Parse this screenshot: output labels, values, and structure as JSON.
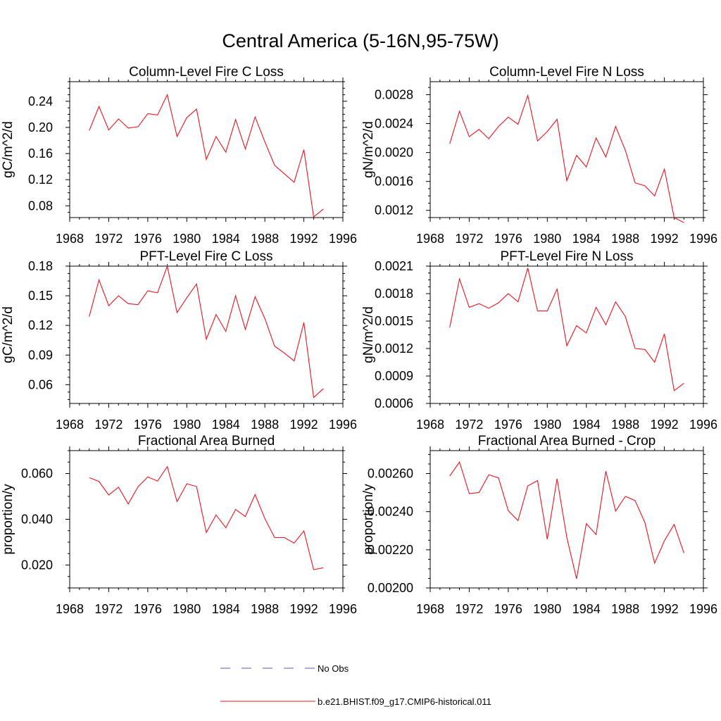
{
  "figure": {
    "title": "Central America (5-16N,95-75W)"
  },
  "legend": {
    "entries": [
      {
        "label": "No Obs",
        "color": "#5a5ab4",
        "dash": true
      },
      {
        "label": "b.e21.BHIST.f09_g17.CMIP6-historical.011",
        "color": "#e8141e",
        "dash": false
      }
    ]
  },
  "chart_data": [
    {
      "type": "line",
      "title": "Column-Level Fire C Loss",
      "ylabel": "gC/m^2/d",
      "xlim": [
        1968,
        1996
      ],
      "xticks": [
        "1968",
        "1972",
        "1976",
        "1980",
        "1984",
        "1988",
        "1992",
        "1996"
      ],
      "ylim": [
        0.062,
        0.27
      ],
      "yticks": [
        "0.08",
        "0.12",
        "0.16",
        "0.20",
        "0.24"
      ],
      "x": [
        1970,
        1971,
        1972,
        1973,
        1974,
        1975,
        1976,
        1977,
        1978,
        1979,
        1980,
        1981,
        1982,
        1983,
        1984,
        1985,
        1986,
        1987,
        1988,
        1989,
        1990,
        1991,
        1992,
        1993,
        1994
      ],
      "series": [
        {
          "name": "b.e21.BHIST.f09_g17.CMIP6-historical.011",
          "color": "#e8141e",
          "values": [
            0.195,
            0.232,
            0.196,
            0.213,
            0.199,
            0.201,
            0.221,
            0.219,
            0.25,
            0.186,
            0.215,
            0.228,
            0.151,
            0.186,
            0.162,
            0.212,
            0.167,
            0.216,
            0.178,
            0.142,
            0.129,
            0.116,
            0.166,
            0.063,
            0.075
          ]
        }
      ]
    },
    {
      "type": "line",
      "title": "Column-Level Fire N Loss",
      "ylabel": "gN/m^2/d",
      "xlim": [
        1968,
        1996
      ],
      "xticks": [
        "1968",
        "1972",
        "1976",
        "1980",
        "1984",
        "1988",
        "1992",
        "1996"
      ],
      "ylim": [
        0.0011,
        0.00298
      ],
      "yticks": [
        "0.0012",
        "0.0016",
        "0.0020",
        "0.0024",
        "0.0028"
      ],
      "x": [
        1970,
        1971,
        1972,
        1973,
        1974,
        1975,
        1976,
        1977,
        1978,
        1979,
        1980,
        1981,
        1982,
        1983,
        1984,
        1985,
        1986,
        1987,
        1988,
        1989,
        1990,
        1991,
        1992,
        1993,
        1994
      ],
      "series": [
        {
          "name": "b.e21.BHIST.f09_g17.CMIP6-historical.011",
          "color": "#e8141e",
          "values": [
            0.00212,
            0.00257,
            0.00222,
            0.00232,
            0.00219,
            0.00236,
            0.00249,
            0.00239,
            0.00279,
            0.00216,
            0.00229,
            0.00246,
            0.00161,
            0.00196,
            0.0018,
            0.0022,
            0.00194,
            0.00236,
            0.00203,
            0.00158,
            0.00154,
            0.0014,
            0.00177,
            0.0011,
            0.00103
          ]
        }
      ]
    },
    {
      "type": "line",
      "title": "PFT-Level Fire C Loss",
      "ylabel": "gC/m^2/d",
      "xlim": [
        1968,
        1996
      ],
      "xticks": [
        "1968",
        "1972",
        "1976",
        "1980",
        "1984",
        "1988",
        "1992",
        "1996"
      ],
      "ylim": [
        0.041,
        0.18
      ],
      "yticks": [
        "0.06",
        "0.09",
        "0.12",
        "0.15",
        "0.18"
      ],
      "x": [
        1970,
        1971,
        1972,
        1973,
        1974,
        1975,
        1976,
        1977,
        1978,
        1979,
        1980,
        1981,
        1982,
        1983,
        1984,
        1985,
        1986,
        1987,
        1988,
        1989,
        1990,
        1991,
        1992,
        1993,
        1994
      ],
      "series": [
        {
          "name": "b.e21.BHIST.f09_g17.CMIP6-historical.011",
          "color": "#e8141e",
          "values": [
            0.129,
            0.166,
            0.14,
            0.15,
            0.142,
            0.141,
            0.155,
            0.153,
            0.18,
            0.133,
            0.148,
            0.162,
            0.106,
            0.131,
            0.114,
            0.15,
            0.116,
            0.149,
            0.127,
            0.099,
            0.092,
            0.084,
            0.123,
            0.047,
            0.056
          ]
        }
      ]
    },
    {
      "type": "line",
      "title": "PFT-Level Fire N Loss",
      "ylabel": "gN/m^2/d",
      "xlim": [
        1968,
        1996
      ],
      "xticks": [
        "1968",
        "1972",
        "1976",
        "1980",
        "1984",
        "1988",
        "1992",
        "1996"
      ],
      "ylim": [
        0.0006,
        0.0021
      ],
      "yticks": [
        "0.0006",
        "0.0009",
        "0.0012",
        "0.0015",
        "0.0018",
        "0.0021"
      ],
      "x": [
        1970,
        1971,
        1972,
        1973,
        1974,
        1975,
        1976,
        1977,
        1978,
        1979,
        1980,
        1981,
        1982,
        1983,
        1984,
        1985,
        1986,
        1987,
        1988,
        1989,
        1990,
        1991,
        1992,
        1993,
        1994
      ],
      "series": [
        {
          "name": "b.e21.BHIST.f09_g17.CMIP6-historical.011",
          "color": "#e8141e",
          "values": [
            0.00143,
            0.00196,
            0.00165,
            0.00169,
            0.00164,
            0.0017,
            0.0018,
            0.00171,
            0.00208,
            0.00161,
            0.00161,
            0.00185,
            0.00123,
            0.00145,
            0.00137,
            0.00165,
            0.00146,
            0.00171,
            0.00155,
            0.0012,
            0.00119,
            0.00105,
            0.00136,
            0.00074,
            0.00082
          ]
        }
      ]
    },
    {
      "type": "line",
      "title": "Fractional Area Burned",
      "ylabel": "proportion/y",
      "xlim": [
        1968,
        1996
      ],
      "xticks": [
        "1968",
        "1972",
        "1976",
        "1980",
        "1984",
        "1988",
        "1992",
        "1996"
      ],
      "ylim": [
        0.01,
        0.07
      ],
      "yticks": [
        "0.020",
        "0.040",
        "0.060"
      ],
      "x": [
        1970,
        1971,
        1972,
        1973,
        1974,
        1975,
        1976,
        1977,
        1978,
        1979,
        1980,
        1981,
        1982,
        1983,
        1984,
        1985,
        1986,
        1987,
        1988,
        1989,
        1990,
        1991,
        1992,
        1993,
        1994
      ],
      "series": [
        {
          "name": "b.e21.BHIST.f09_g17.CMIP6-historical.011",
          "color": "#e8141e",
          "values": [
            0.0582,
            0.0565,
            0.0506,
            0.054,
            0.0467,
            0.0542,
            0.0585,
            0.0567,
            0.063,
            0.0477,
            0.0555,
            0.0543,
            0.0342,
            0.0419,
            0.0363,
            0.0443,
            0.0412,
            0.0508,
            0.0403,
            0.032,
            0.032,
            0.0296,
            0.0349,
            0.018,
            0.0188
          ]
        }
      ]
    },
    {
      "type": "line",
      "title": "Fractional Area Burned - Crop",
      "ylabel": "proportion/y",
      "xlim": [
        1968,
        1996
      ],
      "xticks": [
        "1968",
        "1972",
        "1976",
        "1980",
        "1984",
        "1988",
        "1992",
        "1996"
      ],
      "ylim": [
        0.002,
        0.00272
      ],
      "yticks": [
        "0.00200",
        "0.00220",
        "0.00240",
        "0.00260"
      ],
      "x": [
        1970,
        1971,
        1972,
        1973,
        1974,
        1975,
        1976,
        1977,
        1978,
        1979,
        1980,
        1981,
        1982,
        1983,
        1984,
        1985,
        1986,
        1987,
        1988,
        1989,
        1990,
        1991,
        1992,
        1993,
        1994
      ],
      "series": [
        {
          "name": "b.e21.BHIST.f09_g17.CMIP6-historical.011",
          "color": "#e8141e",
          "values": [
            0.002587,
            0.00266,
            0.002495,
            0.0025,
            0.002593,
            0.002577,
            0.002405,
            0.002353,
            0.002535,
            0.002563,
            0.002255,
            0.002573,
            0.002265,
            0.002048,
            0.002337,
            0.00228,
            0.002612,
            0.002403,
            0.00248,
            0.002458,
            0.002343,
            0.00213,
            0.002247,
            0.002333,
            0.002183
          ]
        }
      ]
    }
  ]
}
